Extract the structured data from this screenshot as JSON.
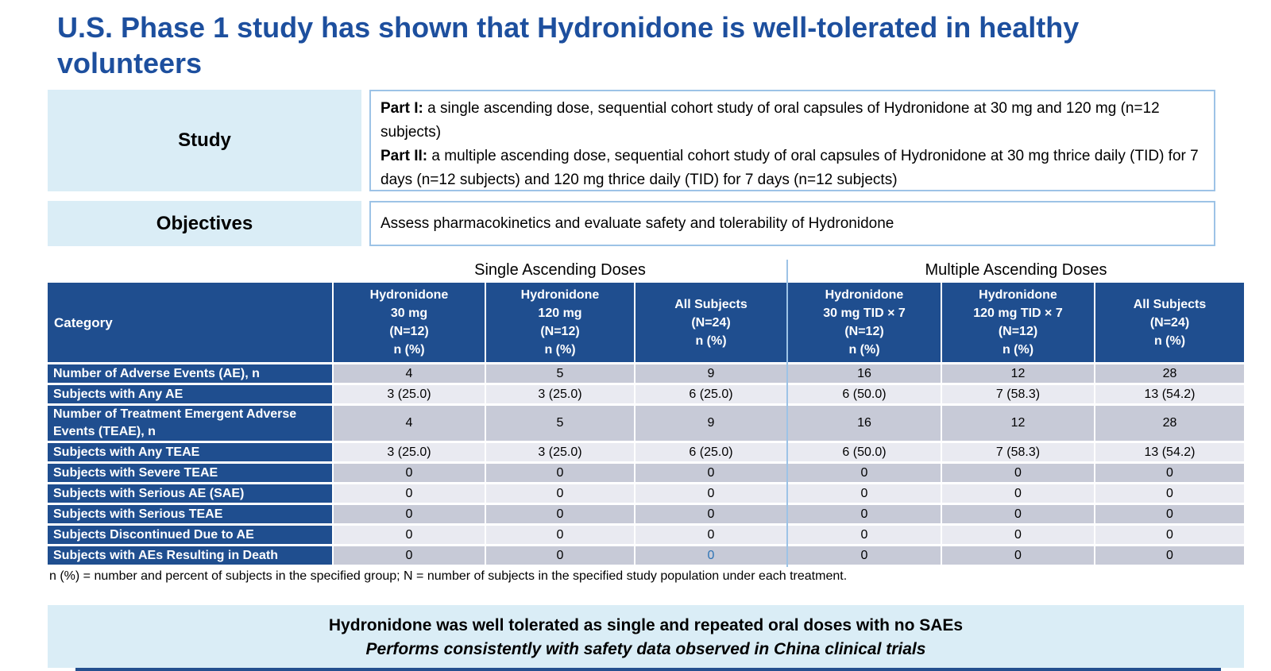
{
  "colors": {
    "title_blue": "#1D4F9E",
    "header_navy": "#1F4E8F",
    "light_blue_fill": "#DAEDF6",
    "box_border_blue": "#9DC3E6",
    "row_shade_dark": "#C7CAD7",
    "row_shade_light": "#E9EAF1",
    "accent_zero_blue": "#2E74B5",
    "bottom_bar_navy": "#24508F"
  },
  "title": "U.S. Phase 1 study has shown that Hydronidone is well-tolerated in healthy volunteers",
  "study_overview": {
    "study_label": "Study",
    "part1_label": "Part I:",
    "part1_text": " a single ascending dose, sequential cohort study of oral capsules of Hydronidone at 30 mg and 120 mg (n=12 subjects)",
    "part2_label": "Part II:",
    "part2_text": " a multiple ascending dose, sequential cohort study of oral capsules of Hydronidone at 30 mg thrice daily (TID) for 7 days (n=12 subjects) and 120 mg thrice daily (TID) for 7 days (n=12 subjects)",
    "objectives_label": "Objectives",
    "objectives_text": "Assess pharmacokinetics and evaluate safety and tolerability of Hydronidone"
  },
  "safety_table": {
    "group_headers": [
      "Single Ascending Doses",
      "Multiple Ascending Doses"
    ],
    "category_header": "Category",
    "column_headers": [
      [
        "Hydronidone",
        "30 mg",
        "(N=12)",
        "n (%)"
      ],
      [
        "Hydronidone",
        "120 mg",
        "(N=12)",
        "n (%)"
      ],
      [
        "All Subjects",
        "(N=24)",
        "n (%)"
      ],
      [
        "Hydronidone",
        "30 mg TID × 7",
        "(N=12)",
        "n (%)"
      ],
      [
        "Hydronidone",
        "120 mg TID × 7",
        "(N=12)",
        "n (%)"
      ],
      [
        "All Subjects",
        "(N=24)",
        "n (%)"
      ]
    ],
    "rows": [
      {
        "label": "Number of Adverse Events (AE), n",
        "values": [
          "4",
          "5",
          "9",
          "16",
          "12",
          "28"
        ]
      },
      {
        "label": "Subjects with Any AE",
        "values": [
          "3 (25.0)",
          "3 (25.0)",
          "6 (25.0)",
          "6 (50.0)",
          "7 (58.3)",
          "13 (54.2)"
        ]
      },
      {
        "label": "Number of Treatment Emergent Adverse Events (TEAE), n",
        "values": [
          "4",
          "5",
          "9",
          "16",
          "12",
          "28"
        ]
      },
      {
        "label": "Subjects with Any TEAE",
        "values": [
          "3 (25.0)",
          "3 (25.0)",
          "6 (25.0)",
          "6 (50.0)",
          "7 (58.3)",
          "13 (54.2)"
        ]
      },
      {
        "label": "Subjects with Severe TEAE",
        "values": [
          "0",
          "0",
          "0",
          "0",
          "0",
          "0"
        ]
      },
      {
        "label": "Subjects with Serious AE (SAE)",
        "values": [
          "0",
          "0",
          "0",
          "0",
          "0",
          "0"
        ]
      },
      {
        "label": "Subjects with Serious TEAE",
        "values": [
          "0",
          "0",
          "0",
          "0",
          "0",
          "0"
        ]
      },
      {
        "label": "Subjects Discontinued Due to AE",
        "values": [
          "0",
          "0",
          "0",
          "0",
          "0",
          "0"
        ]
      },
      {
        "label": "Subjects with AEs Resulting in Death",
        "values": [
          "0",
          "0",
          "0",
          "0",
          "0",
          "0"
        ]
      }
    ],
    "blue_zero_cell": {
      "row": 8,
      "col": 2
    },
    "footnote": "n (%) = number and percent of subjects in the specified group; N = number of subjects in the specified study population under each treatment."
  },
  "conclusion_banner": {
    "line1": "Hydronidone was well tolerated as single and repeated oral doses with no SAEs",
    "line2": "Performs consistently with safety data observed in China clinical trials"
  }
}
